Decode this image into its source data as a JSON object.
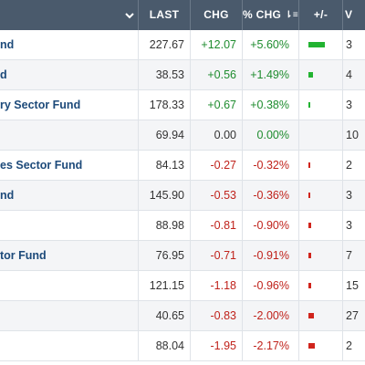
{
  "header": {
    "last": "LAST",
    "chg": "CHG",
    "pct_chg": "% CHG",
    "pct_sort_glyph": "⇂≡",
    "plus_minus": "+/-",
    "vol_partial": "V"
  },
  "colors": {
    "header_bg": "#4a5a6c",
    "name": "#1d4a7a",
    "positive": "#1e8c2e",
    "negative": "#c0221b",
    "row_alt": "#f4f5f7"
  },
  "rows": [
    {
      "name": "nd",
      "last": "227.67",
      "chg": "+12.07",
      "pct": "+5.60%",
      "dir": "pos",
      "bar": 0.056,
      "vol": "3"
    },
    {
      "name": "d",
      "last": "38.53",
      "chg": "+0.56",
      "pct": "+1.49%",
      "dir": "pos",
      "bar": 0.0149,
      "vol": "4"
    },
    {
      "name": "ry Sector Fund",
      "last": "178.33",
      "chg": "+0.67",
      "pct": "+0.38%",
      "dir": "pos",
      "bar": 0.0038,
      "vol": "3"
    },
    {
      "name": "",
      "last": "69.94",
      "chg": "0.00",
      "pct": "0.00%",
      "dir": "zero",
      "bar": 0,
      "vol": "10"
    },
    {
      "name": "es Sector Fund",
      "last": "84.13",
      "chg": "-0.27",
      "pct": "-0.32%",
      "dir": "neg",
      "bar": 0.0032,
      "vol": "2"
    },
    {
      "name": "nd",
      "last": "145.90",
      "chg": "-0.53",
      "pct": "-0.36%",
      "dir": "neg",
      "bar": 0.0036,
      "vol": "3"
    },
    {
      "name": "",
      "last": "88.98",
      "chg": "-0.81",
      "pct": "-0.90%",
      "dir": "neg",
      "bar": 0.009,
      "vol": "3"
    },
    {
      "name": "tor Fund",
      "last": "76.95",
      "chg": "-0.71",
      "pct": "-0.91%",
      "dir": "neg",
      "bar": 0.0091,
      "vol": "7"
    },
    {
      "name": "",
      "last": "121.15",
      "chg": "-1.18",
      "pct": "-0.96%",
      "dir": "neg",
      "bar": 0.0096,
      "vol": "15"
    },
    {
      "name": "",
      "last": "40.65",
      "chg": "-0.83",
      "pct": "-2.00%",
      "dir": "neg",
      "bar": 0.02,
      "vol": "27"
    },
    {
      "name": "",
      "last": "88.04",
      "chg": "-1.95",
      "pct": "-2.17%",
      "dir": "neg",
      "bar": 0.0217,
      "vol": "2"
    }
  ]
}
